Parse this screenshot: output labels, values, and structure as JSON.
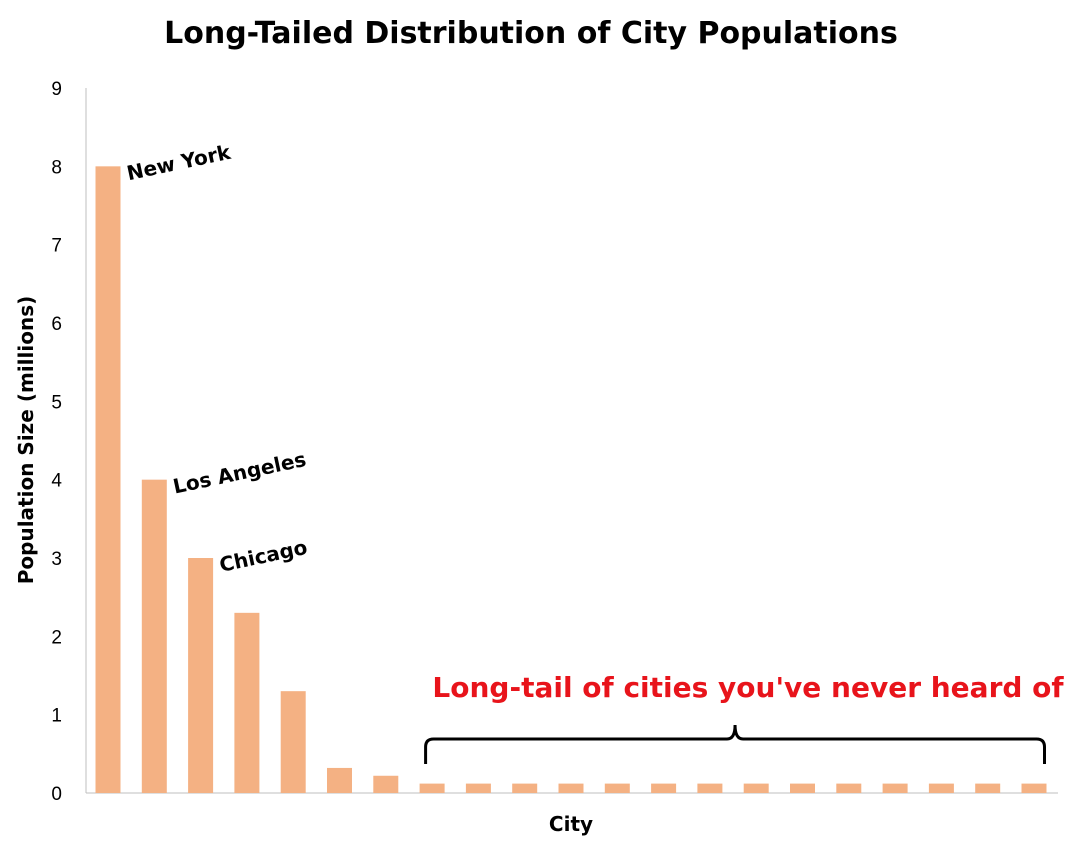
{
  "chart_data": {
    "type": "bar",
    "title": "Long-Tailed Distribution of City Populations",
    "xlabel": "City",
    "ylabel": "Population Size  (millions)",
    "ylim": [
      0,
      9
    ],
    "yticks": [
      "0",
      "1",
      "2",
      "3",
      "4",
      "5",
      "6",
      "7",
      "8",
      "9"
    ],
    "grid": false,
    "bar_color": "#F4B183",
    "values": [
      8.0,
      4.0,
      3.0,
      2.3,
      1.3,
      0.32,
      0.22,
      0.12,
      0.12,
      0.12,
      0.12,
      0.12,
      0.12,
      0.12,
      0.12,
      0.12,
      0.12,
      0.12,
      0.12,
      0.12,
      0.12
    ],
    "annotations": [
      {
        "text": "New York",
        "bar_index": 0
      },
      {
        "text": "Los Angeles",
        "bar_index": 1
      },
      {
        "text": "Chicago",
        "bar_index": 2
      }
    ],
    "bracket_annotation": {
      "text": "Long-tail of cities you've never heard of",
      "from_bar_index": 7,
      "to_bar_index": 20,
      "color": "#E8141B"
    }
  }
}
